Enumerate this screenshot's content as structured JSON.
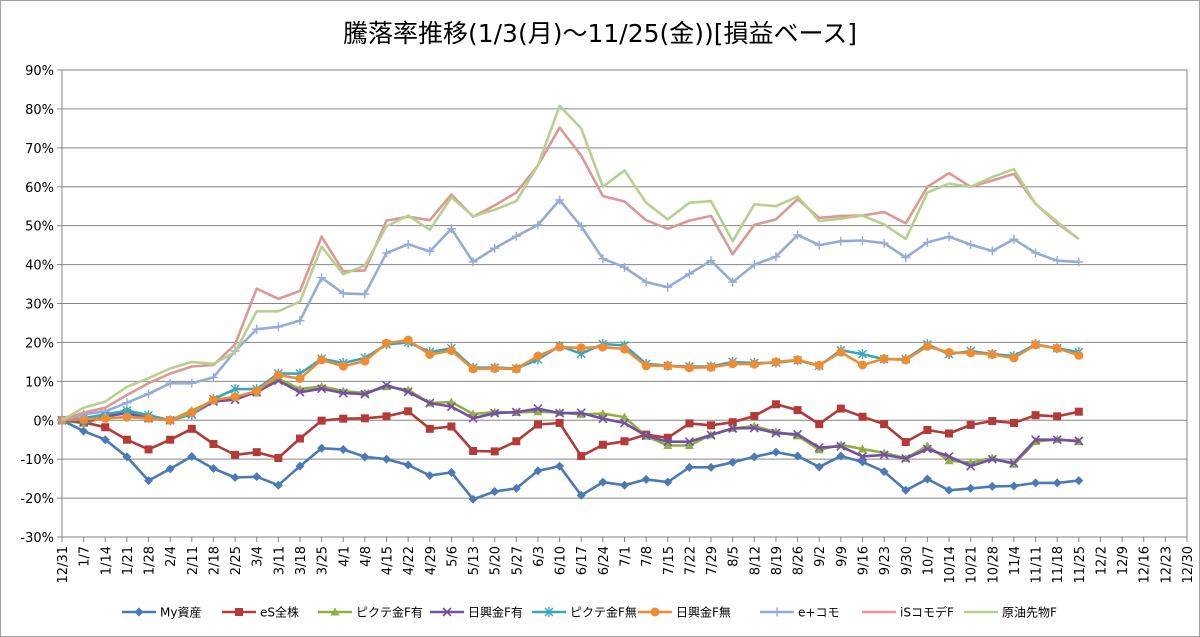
{
  "chart_data": {
    "type": "line",
    "title": "騰落率推移(1/3(月)～11/25(金))[損益ベース]",
    "xlabel": "",
    "ylabel": "",
    "ylim": [
      -30,
      90
    ],
    "y_ticks": [
      "-30%",
      "-20%",
      "-10%",
      "0%",
      "10%",
      "20%",
      "30%",
      "40%",
      "50%",
      "60%",
      "70%",
      "80%",
      "90%"
    ],
    "y_tick_values": [
      -30,
      -20,
      -10,
      0,
      10,
      20,
      30,
      40,
      50,
      60,
      70,
      80,
      90
    ],
    "grid": "horizontal",
    "legend_position": "bottom",
    "categories": [
      "12/31",
      "1/7",
      "1/14",
      "1/21",
      "1/28",
      "2/4",
      "2/11",
      "2/18",
      "2/25",
      "3/4",
      "3/11",
      "3/18",
      "3/25",
      "4/1",
      "4/8",
      "4/15",
      "4/22",
      "4/29",
      "5/6",
      "5/13",
      "5/20",
      "5/27",
      "6/3",
      "6/10",
      "6/17",
      "6/24",
      "7/1",
      "7/8",
      "7/15",
      "7/22",
      "7/29",
      "8/5",
      "8/12",
      "8/19",
      "8/26",
      "9/2",
      "9/9",
      "9/16",
      "9/23",
      "9/30",
      "10/7",
      "10/14",
      "10/21",
      "10/28",
      "11/4",
      "11/11",
      "11/18",
      "11/25",
      "12/2",
      "12/9",
      "12/16",
      "12/23",
      "12/30"
    ],
    "series": [
      {
        "name": "My資産",
        "color": "#4a7ab6",
        "marker": "diamond",
        "values": [
          0,
          -2.8,
          -5,
          -9.4,
          -15.5,
          -12.5,
          -9.3,
          -12.4,
          -14.7,
          -14.5,
          -16.7,
          -11.8,
          -7.2,
          -7.5,
          -9.4,
          -10,
          -11.5,
          -14.2,
          -13.4,
          -20.3,
          -18.3,
          -17.5,
          -13,
          -11.8,
          -19.3,
          -15.9,
          -16.7,
          -15.2,
          -15.9,
          -12.1,
          -12.1,
          -10.8,
          -9.4,
          -8.2,
          -9.2,
          -12,
          -9.2,
          -10.7,
          -13.2,
          -18,
          -15.1,
          -18,
          -17.5,
          -17,
          -16.9,
          -16.1,
          -16.1,
          -15.5,
          null,
          null,
          null,
          null,
          null
        ]
      },
      {
        "name": "eS全株",
        "color": "#b33a37",
        "marker": "square",
        "values": [
          0,
          -0.5,
          -1.8,
          -5,
          -7.5,
          -5,
          -2.2,
          -6.1,
          -8.9,
          -8.2,
          -9.7,
          -4.7,
          -0.1,
          0.4,
          0.5,
          1,
          2.3,
          -2.2,
          -1.6,
          -7.9,
          -8,
          -5.4,
          -1.1,
          -0.7,
          -9.2,
          -6.3,
          -5.4,
          -3.7,
          -4.5,
          -0.8,
          -1.3,
          -0.5,
          1.1,
          4.1,
          2.6,
          -1,
          3,
          0.9,
          -1,
          -5.6,
          -2.5,
          -3.4,
          -1.2,
          -0.2,
          -0.7,
          1.3,
          1,
          2.2,
          null,
          null,
          null,
          null,
          null
        ]
      },
      {
        "name": "ピクテ金F有",
        "color": "#8fb040",
        "marker": "triangle",
        "values": [
          0,
          -0.8,
          0.8,
          2.5,
          1,
          0,
          2.5,
          5,
          6,
          7,
          10.7,
          8,
          8.7,
          7.5,
          7,
          8.6,
          7.8,
          4.4,
          4.7,
          1.6,
          2.1,
          2,
          2.2,
          2,
          1.5,
          1.7,
          0.8,
          -4.1,
          -6.5,
          -6.5,
          -3.8,
          -2.1,
          -1.5,
          -3,
          -4,
          -7.6,
          -6.3,
          -7.4,
          -8.4,
          -9.8,
          -6.6,
          -10.4,
          -10.9,
          -9.7,
          -11.3,
          -5.5,
          -4.9,
          -5.5,
          null,
          null,
          null,
          null,
          null
        ]
      },
      {
        "name": "日興金F有",
        "color": "#7550a0",
        "marker": "x",
        "values": [
          0,
          -0.5,
          1,
          1.8,
          0.5,
          0,
          1.5,
          4.8,
          5.3,
          7.3,
          10.2,
          7.2,
          8.1,
          7,
          6.7,
          9,
          7.3,
          4.4,
          3.5,
          0.5,
          1.8,
          2.1,
          3,
          1.8,
          1.9,
          0.4,
          -0.7,
          -4,
          -5.5,
          -5.5,
          -3.8,
          -2.1,
          -2,
          -3.3,
          -3.6,
          -7,
          -6.7,
          -9.3,
          -8.9,
          -9.8,
          -7.4,
          -9.3,
          -11.8,
          -10,
          -11,
          -5,
          -5,
          -5.3,
          null,
          null,
          null,
          null,
          null
        ]
      },
      {
        "name": "ピクテ金F無",
        "color": "#3aa6bd",
        "marker": "asterisk",
        "values": [
          0,
          0.5,
          1.5,
          2.5,
          1.3,
          0,
          1.5,
          5.4,
          8,
          8,
          12,
          12,
          15.8,
          14.7,
          16,
          19.5,
          20,
          17.5,
          18.5,
          13.5,
          13.5,
          13.3,
          15.6,
          19.1,
          17.1,
          19.6,
          19.2,
          14.5,
          14,
          13.8,
          13.8,
          15,
          14.7,
          14.8,
          15.4,
          14,
          18,
          17,
          15.7,
          15.7,
          19.5,
          17,
          17.8,
          17,
          16.5,
          19.5,
          18.5,
          17.5,
          null,
          null,
          null,
          null,
          null
        ]
      },
      {
        "name": "日興金F無",
        "color": "#ee8c34",
        "marker": "circle",
        "values": [
          0,
          0.2,
          0.5,
          0.8,
          0.5,
          0,
          2,
          5.2,
          6,
          7.5,
          11.6,
          10.7,
          15.5,
          13.9,
          15.2,
          19.8,
          20.6,
          16.9,
          17.9,
          13.2,
          13.3,
          13.2,
          16.5,
          18.8,
          18.6,
          18.8,
          18.3,
          14,
          14,
          13.5,
          13.6,
          14.5,
          14.4,
          15,
          15.5,
          14.1,
          17.5,
          14.2,
          15.8,
          15.5,
          19,
          17.4,
          17.3,
          16.9,
          16,
          19.4,
          18.5,
          16.7,
          null,
          null,
          null,
          null,
          null
        ]
      },
      {
        "name": "e+コモ",
        "color": "#94acd6",
        "marker": "plus",
        "values": [
          0,
          1.5,
          2.3,
          4.5,
          6.8,
          9.5,
          9.5,
          11,
          17.8,
          23.4,
          24,
          25.6,
          36.6,
          32.6,
          32.4,
          43,
          45.2,
          43.4,
          49.2,
          40.7,
          44.2,
          47.3,
          50.2,
          56.6,
          49.8,
          41.5,
          39.3,
          35.5,
          34.2,
          37.6,
          41,
          35.5,
          40,
          42,
          47.6,
          45,
          46,
          46.2,
          45.5,
          41.8,
          45.7,
          47.2,
          45.1,
          43.5,
          46.5,
          43,
          41,
          40.7,
          null,
          null,
          null,
          null,
          null
        ]
      },
      {
        "name": "iSコモデF",
        "color": "#de9894",
        "marker": "line",
        "values": [
          0,
          2,
          3.2,
          6.5,
          9.5,
          12,
          13.8,
          14.2,
          19.5,
          33.8,
          31.2,
          33.2,
          47.2,
          38.3,
          38.5,
          51.3,
          52.3,
          51.4,
          58,
          52.3,
          55.2,
          58.5,
          65.5,
          75.2,
          68,
          57.6,
          56.2,
          51.4,
          49.2,
          51.3,
          52.5,
          42.7,
          50.2,
          51.6,
          56.8,
          52,
          52.5,
          52.6,
          53.5,
          50.6,
          60,
          63.5,
          60,
          61.6,
          63.3,
          55.6,
          50.6,
          46.6,
          null,
          null,
          null,
          null,
          null
        ]
      },
      {
        "name": "原油先物F",
        "color": "#b6d18e",
        "marker": "line",
        "values": [
          0,
          3.2,
          4.8,
          8.6,
          10.8,
          13.3,
          15,
          14.5,
          17.5,
          28,
          28,
          30.5,
          44.6,
          37.5,
          39.8,
          49.8,
          52.6,
          48.9,
          57.3,
          52.4,
          54.1,
          56.3,
          65.5,
          80.8,
          75,
          60,
          64.2,
          55.9,
          51.6,
          55.9,
          56.3,
          46,
          55.5,
          55,
          57.5,
          51.2,
          51.8,
          52.6,
          50.3,
          46.6,
          58.5,
          60.8,
          60,
          62.5,
          64.5,
          55.6,
          51,
          46.5,
          null,
          null,
          null,
          null,
          null
        ]
      }
    ]
  }
}
